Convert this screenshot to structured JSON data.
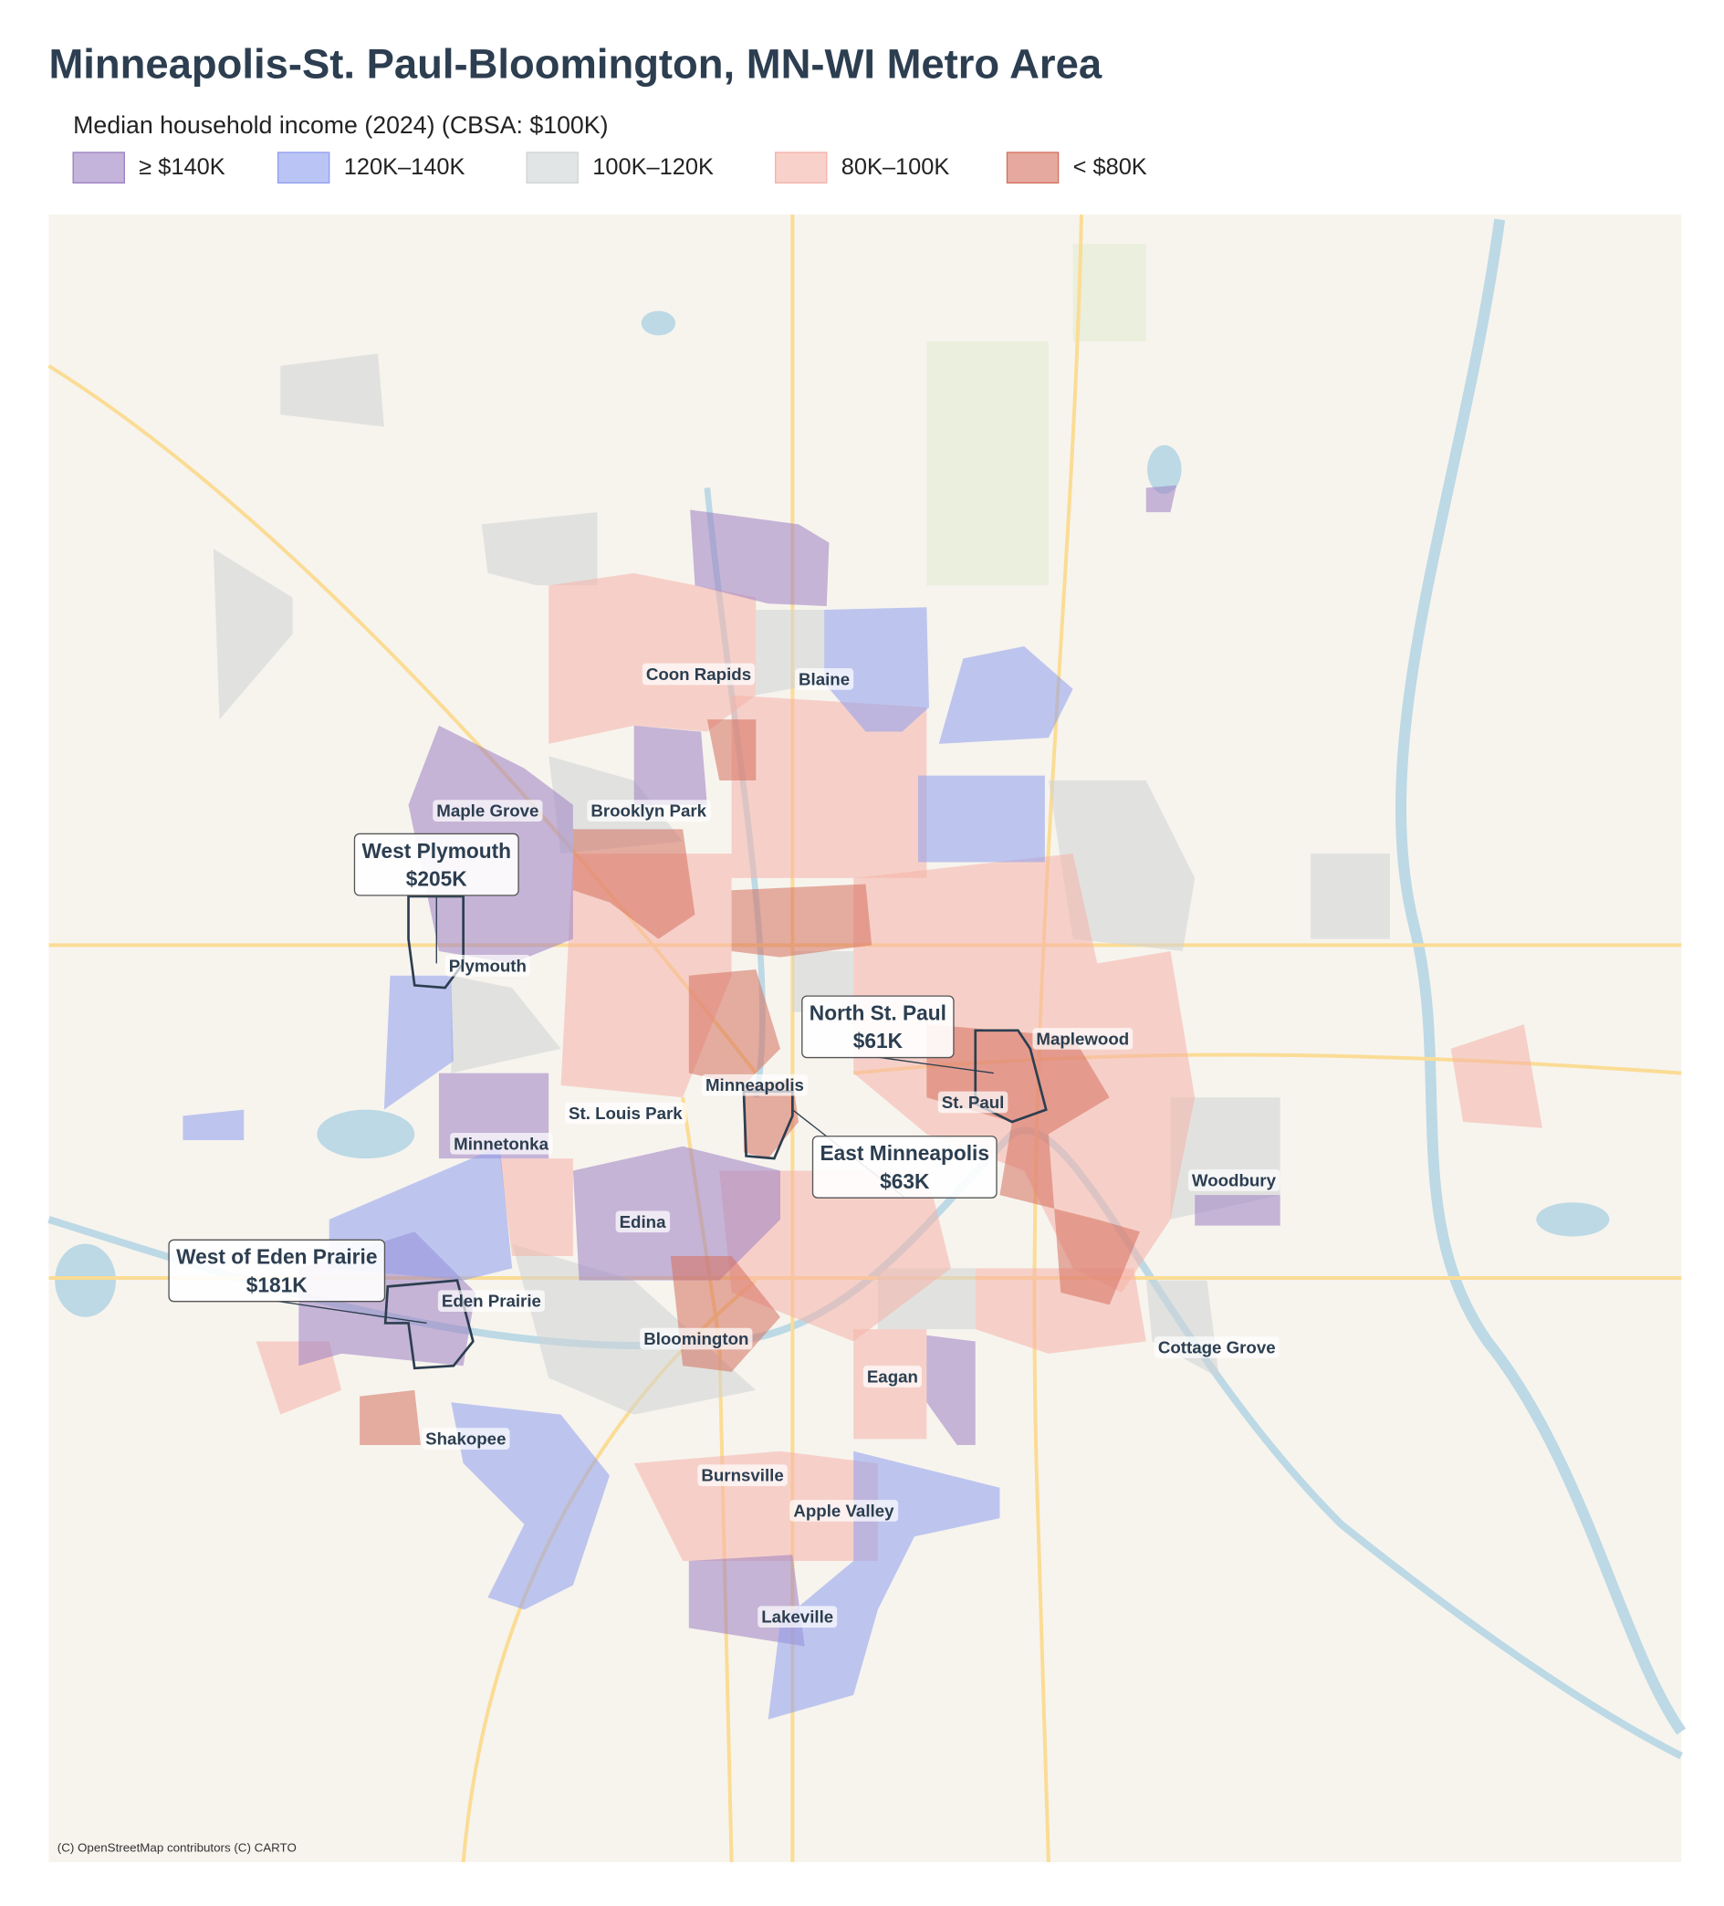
{
  "title": "Minneapolis-St. Paul-Bloomington, MN-WI Metro Area",
  "legend": {
    "title": "Median household income (2024)  (CBSA: $100K)",
    "items": [
      {
        "label": "≥ $140K",
        "color": "#9d80c2"
      },
      {
        "label": "120K–140K",
        "color": "#8e9fee"
      },
      {
        "label": "100K–120K",
        "color": "#cfd3d6"
      },
      {
        "label": "80K–100K",
        "color": "#f5b2a9"
      },
      {
        "label": "< $80K",
        "color": "#d5705f"
      }
    ]
  },
  "places": [
    "Coon Rapids",
    "Blaine",
    "Maple Grove",
    "Brooklyn Park",
    "Plymouth",
    "Minneapolis",
    "St. Louis Park",
    "Minnetonka",
    "St. Paul",
    "Maplewood",
    "Edina",
    "Woodbury",
    "Eden Prairie",
    "Bloomington",
    "Cottage Grove",
    "Eagan",
    "Shakopee",
    "Burnsville",
    "Apple Valley",
    "Lakeville"
  ],
  "callouts": [
    {
      "name": "West Plymouth",
      "value": "$205K"
    },
    {
      "name": "North St. Paul",
      "value": "$61K"
    },
    {
      "name": "East Minneapolis",
      "value": "$63K"
    },
    {
      "name": "West of Eden Prairie",
      "value": "$181K"
    }
  ],
  "attribution": "(C) OpenStreetMap contributors (C) CARTO"
}
